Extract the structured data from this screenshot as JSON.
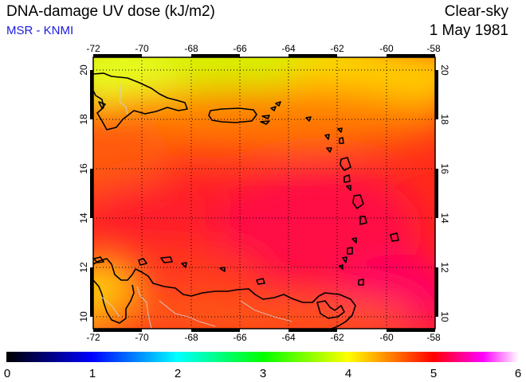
{
  "header": {
    "title": "DNA-damage UV dose (kJ/m2)",
    "source": "MSR - KNMI",
    "sky": "Clear-sky",
    "date": "1 May 1981"
  },
  "map": {
    "lon_ticks": [
      "-72",
      "-70",
      "-68",
      "-66",
      "-64",
      "-62",
      "-60",
      "-58"
    ],
    "lat_ticks": [
      "20",
      "18",
      "16",
      "14",
      "12",
      "10"
    ],
    "lon_range": [
      -72,
      -58
    ],
    "lat_range": [
      9.5,
      20.5
    ],
    "grid": "dotted",
    "field": "UV dose, roughly 3.5 (north, yellow) to 4.9 (south-east, magenta-red)"
  },
  "colorbar": {
    "labels": [
      "0",
      "1",
      "2",
      "3",
      "4",
      "5",
      "6"
    ],
    "range": [
      0,
      6
    ],
    "colors": [
      "#000000",
      "#0000ff",
      "#00ffff",
      "#00ff00",
      "#ffff00",
      "#ff0000",
      "#ff00ff",
      "#ffffff"
    ]
  }
}
